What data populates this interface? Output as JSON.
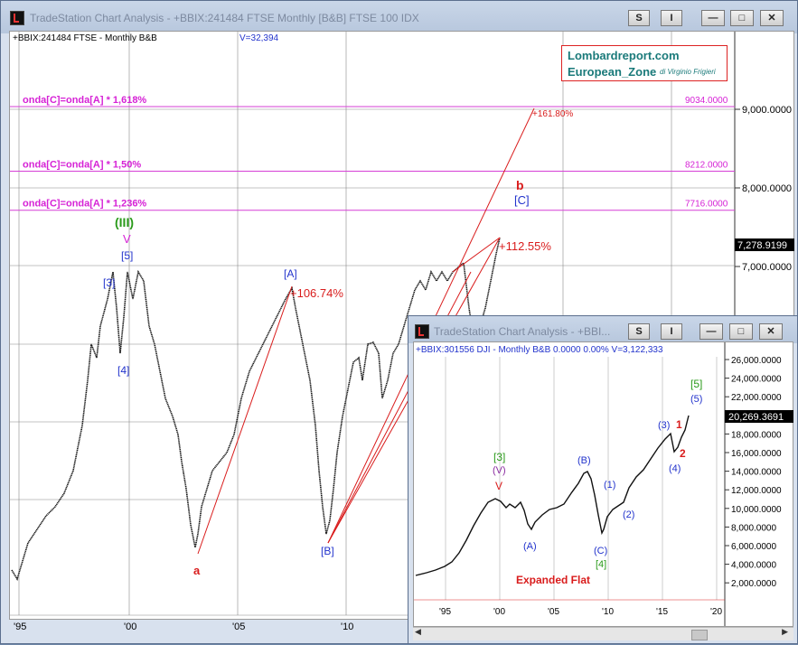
{
  "colors": {
    "fib_line": "#d63fd6",
    "fib_label": "#d622d6",
    "price_tag": "#000000",
    "red": "#d91c1c",
    "blue": "#2233cc",
    "green": "#2a9a1a",
    "purple": "#8a2ca0"
  },
  "main_window": {
    "title": "TradeStation Chart Analysis - +BBIX:241484 FTSE Monthly [B&B] FTSE 100 IDX",
    "btn_s": "S",
    "btn_i": "I",
    "symbol_line": "+BBIX:241484 FTSE - Monthly  B&B",
    "volume": "V=32,394",
    "logo_line1": "Lombardreport.com",
    "logo_line2": "European_Zone",
    "logo_by": "di Virginio Frigieri",
    "fib_levels": [
      {
        "label": "onda[C]=onda[A] * 1,618%",
        "value_tag": "9034.0000",
        "price": 9034
      },
      {
        "label": "onda[C]=onda[A] * 1,50%",
        "value_tag": "8212.0000",
        "price": 8212
      },
      {
        "label": "onda[C]=onda[A] * 1,236%",
        "value_tag": "7716.0000",
        "price": 7716
      }
    ],
    "y_ticks": [
      "9,000.0000",
      "8,000.0000",
      "7,000.0000"
    ],
    "y_tick_values": [
      9000,
      8000,
      7000
    ],
    "last_price": "7,278.9199",
    "x_ticks": [
      "'95",
      "'00",
      "'05",
      "'10"
    ],
    "waves": {
      "iii": "(III)",
      "v": "V",
      "w5": "[5]",
      "w3": "[3]",
      "w4": "[4]",
      "wa": "[A]",
      "wb": "[B]",
      "wc": "[C]",
      "a": "a",
      "b": "b",
      "pct_a": "+106.74%",
      "pct_c": "+112.55%",
      "pct_ext": "+161.80%"
    }
  },
  "inset_window": {
    "title": "TradeStation Chart Analysis - +BBI...",
    "btn_s": "S",
    "btn_i": "I",
    "symbol_line": "+BBIX:301556 DJI - Monthly  B&B  0.0000  0.00%  V=3,122,333",
    "y_ticks": [
      "26,000.0000",
      "24,000.0000",
      "22,000.0000",
      "18,000.0000",
      "16,000.0000",
      "14,000.0000",
      "12,000.0000",
      "10,000.0000",
      "8,000.0000",
      "6,000.0000",
      "4,000.0000",
      "2,000.0000"
    ],
    "last_price": "20,269.3691",
    "x_ticks": [
      "'95",
      "'00",
      "'05",
      "'10",
      "'15",
      "'20"
    ],
    "waves": {
      "w3": "[3]",
      "wV": "(V)",
      "v": "V",
      "A": "(A)",
      "B": "(B)",
      "C": "(C)",
      "w4": "[4]",
      "one": "(1)",
      "two": "(2)",
      "three": "(3)",
      "four": "(4)",
      "five": "(5)",
      "w5": "[5]",
      "r1": "1",
      "r2": "2"
    },
    "note": "Expanded Flat"
  }
}
